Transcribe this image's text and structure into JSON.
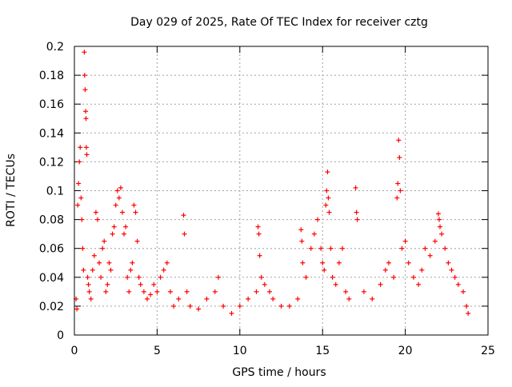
{
  "chart_data": {
    "type": "scatter",
    "title": "Day 029 of 2025, Rate Of TEC Index for receiver cztg",
    "xlabel": "GPS time / hours",
    "ylabel": "ROTI / TECUs",
    "xlim": [
      0,
      25
    ],
    "ylim": [
      0,
      0.2
    ],
    "x_ticks": [
      0,
      5,
      10,
      15,
      20,
      25
    ],
    "x_tick_labels": [
      "0",
      "5",
      "10",
      "15",
      "20",
      "25"
    ],
    "y_ticks": [
      0,
      0.02,
      0.04,
      0.06,
      0.08,
      0.1,
      0.12,
      0.14,
      0.16,
      0.18,
      0.2
    ],
    "y_tick_labels": [
      "0",
      "0.02",
      "0.04",
      "0.06",
      "0.08",
      "0.1",
      "0.12",
      "0.14",
      "0.16",
      "0.18",
      "0.2"
    ],
    "grid": true,
    "marker": "plus",
    "series": [
      {
        "name": "ROTI",
        "color": "#ff0000",
        "points": [
          [
            0.1,
            0.025
          ],
          [
            0.15,
            0.018
          ],
          [
            0.2,
            0.09
          ],
          [
            0.25,
            0.105
          ],
          [
            0.3,
            0.12
          ],
          [
            0.35,
            0.13
          ],
          [
            0.4,
            0.095
          ],
          [
            0.45,
            0.08
          ],
          [
            0.5,
            0.06
          ],
          [
            0.55,
            0.045
          ],
          [
            0.6,
            0.196
          ],
          [
            0.62,
            0.18
          ],
          [
            0.65,
            0.17
          ],
          [
            0.68,
            0.155
          ],
          [
            0.7,
            0.15
          ],
          [
            0.72,
            0.13
          ],
          [
            0.75,
            0.125
          ],
          [
            0.8,
            0.04
          ],
          [
            0.85,
            0.035
          ],
          [
            0.9,
            0.03
          ],
          [
            1.0,
            0.025
          ],
          [
            1.1,
            0.045
          ],
          [
            1.2,
            0.055
          ],
          [
            1.3,
            0.085
          ],
          [
            1.4,
            0.08
          ],
          [
            1.5,
            0.05
          ],
          [
            1.6,
            0.04
          ],
          [
            1.7,
            0.06
          ],
          [
            1.8,
            0.065
          ],
          [
            1.9,
            0.03
          ],
          [
            2.0,
            0.035
          ],
          [
            2.1,
            0.05
          ],
          [
            2.2,
            0.045
          ],
          [
            2.3,
            0.07
          ],
          [
            2.4,
            0.075
          ],
          [
            2.5,
            0.09
          ],
          [
            2.6,
            0.1
          ],
          [
            2.7,
            0.095
          ],
          [
            2.8,
            0.102
          ],
          [
            2.9,
            0.085
          ],
          [
            3.0,
            0.07
          ],
          [
            3.1,
            0.075
          ],
          [
            3.2,
            0.04
          ],
          [
            3.3,
            0.03
          ],
          [
            3.4,
            0.045
          ],
          [
            3.5,
            0.05
          ],
          [
            3.6,
            0.09
          ],
          [
            3.7,
            0.085
          ],
          [
            3.8,
            0.065
          ],
          [
            3.9,
            0.04
          ],
          [
            4.0,
            0.035
          ],
          [
            4.2,
            0.03
          ],
          [
            4.4,
            0.025
          ],
          [
            4.6,
            0.028
          ],
          [
            4.8,
            0.035
          ],
          [
            5.0,
            0.03
          ],
          [
            5.2,
            0.04
          ],
          [
            5.4,
            0.045
          ],
          [
            5.6,
            0.05
          ],
          [
            5.8,
            0.03
          ],
          [
            6.0,
            0.02
          ],
          [
            6.3,
            0.025
          ],
          [
            6.6,
            0.083
          ],
          [
            6.65,
            0.07
          ],
          [
            6.8,
            0.03
          ],
          [
            7.0,
            0.02
          ],
          [
            7.5,
            0.018
          ],
          [
            8.0,
            0.025
          ],
          [
            8.5,
            0.03
          ],
          [
            8.7,
            0.04
          ],
          [
            9.0,
            0.02
          ],
          [
            9.5,
            0.015
          ],
          [
            10.0,
            0.02
          ],
          [
            10.5,
            0.025
          ],
          [
            11.0,
            0.03
          ],
          [
            11.1,
            0.075
          ],
          [
            11.15,
            0.07
          ],
          [
            11.2,
            0.055
          ],
          [
            11.3,
            0.04
          ],
          [
            11.5,
            0.035
          ],
          [
            11.8,
            0.03
          ],
          [
            12.0,
            0.025
          ],
          [
            12.5,
            0.02
          ],
          [
            13.0,
            0.02
          ],
          [
            13.5,
            0.025
          ],
          [
            13.7,
            0.073
          ],
          [
            13.75,
            0.065
          ],
          [
            13.8,
            0.05
          ],
          [
            14.0,
            0.04
          ],
          [
            14.3,
            0.06
          ],
          [
            14.5,
            0.07
          ],
          [
            14.7,
            0.08
          ],
          [
            14.9,
            0.06
          ],
          [
            15.0,
            0.05
          ],
          [
            15.1,
            0.045
          ],
          [
            15.2,
            0.09
          ],
          [
            15.25,
            0.1
          ],
          [
            15.3,
            0.113
          ],
          [
            15.35,
            0.095
          ],
          [
            15.4,
            0.085
          ],
          [
            15.5,
            0.06
          ],
          [
            15.6,
            0.04
          ],
          [
            15.8,
            0.035
          ],
          [
            16.0,
            0.05
          ],
          [
            16.2,
            0.06
          ],
          [
            16.4,
            0.03
          ],
          [
            16.6,
            0.025
          ],
          [
            17.0,
            0.102
          ],
          [
            17.05,
            0.085
          ],
          [
            17.1,
            0.08
          ],
          [
            17.5,
            0.03
          ],
          [
            18.0,
            0.025
          ],
          [
            18.5,
            0.035
          ],
          [
            18.8,
            0.045
          ],
          [
            19.0,
            0.05
          ],
          [
            19.3,
            0.04
          ],
          [
            19.5,
            0.095
          ],
          [
            19.55,
            0.105
          ],
          [
            19.6,
            0.135
          ],
          [
            19.65,
            0.123
          ],
          [
            19.7,
            0.1
          ],
          [
            19.8,
            0.06
          ],
          [
            20.0,
            0.065
          ],
          [
            20.2,
            0.05
          ],
          [
            20.5,
            0.04
          ],
          [
            20.8,
            0.035
          ],
          [
            21.0,
            0.045
          ],
          [
            21.2,
            0.06
          ],
          [
            21.5,
            0.055
          ],
          [
            21.8,
            0.065
          ],
          [
            22.0,
            0.084
          ],
          [
            22.05,
            0.08
          ],
          [
            22.1,
            0.075
          ],
          [
            22.2,
            0.07
          ],
          [
            22.4,
            0.06
          ],
          [
            22.6,
            0.05
          ],
          [
            22.8,
            0.045
          ],
          [
            23.0,
            0.04
          ],
          [
            23.2,
            0.035
          ],
          [
            23.5,
            0.03
          ],
          [
            23.7,
            0.02
          ],
          [
            23.8,
            0.015
          ]
        ]
      }
    ]
  }
}
